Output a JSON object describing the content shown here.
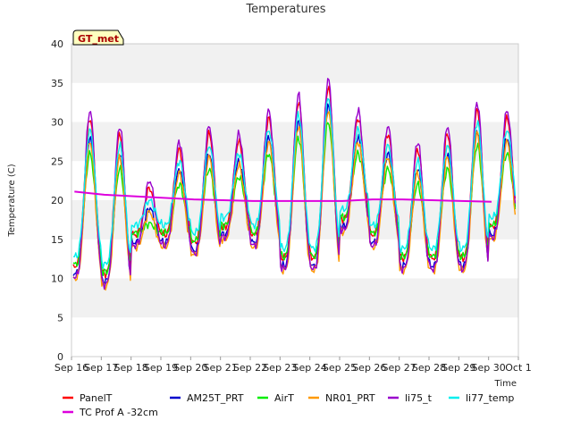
{
  "chart_data": {
    "type": "line",
    "title": "Temperatures",
    "xlabel": "Time",
    "ylabel": "Temperature (C)",
    "ylim": [
      0,
      40
    ],
    "yticks": [
      0,
      5,
      10,
      15,
      20,
      25,
      30,
      35,
      40
    ],
    "xlim": [
      "2015-09-16",
      "2015-10-01"
    ],
    "xtick_labels": [
      "Sep 16",
      "Sep 17",
      "Sep 18",
      "Sep 19",
      "Sep 20",
      "Sep 21",
      "Sep 22",
      "Sep 23",
      "Sep 24",
      "Sep 25",
      "Sep 26",
      "Sep 27",
      "Sep 28",
      "Sep 29",
      "Sep 30",
      "Oct 1"
    ],
    "grid": "horizontal bands",
    "legend_position": "bottom",
    "annotation": "GT_met",
    "days": [
      "Sep 16",
      "Sep 17",
      "Sep 18",
      "Sep 19",
      "Sep 20",
      "Sep 21",
      "Sep 22",
      "Sep 23",
      "Sep 24",
      "Sep 25",
      "Sep 26",
      "Sep 27",
      "Sep 28",
      "Sep 29",
      "Sep 30"
    ],
    "daily_min": [
      11,
      10,
      15,
      15,
      14,
      16,
      15,
      12,
      12,
      17,
      15,
      12,
      12,
      12,
      16
    ],
    "daily_max": [
      30,
      28,
      21,
      26,
      28,
      27,
      30,
      32,
      34,
      30,
      28,
      26,
      28,
      31,
      30
    ],
    "series": [
      {
        "name": "PanelT",
        "color": "#ff0000",
        "offset_max": 0.5,
        "offset_min": 0.6
      },
      {
        "name": "AM25T_PRT",
        "color": "#0000cc",
        "offset_max": -2.0,
        "offset_min": -0.4
      },
      {
        "name": "AirT",
        "color": "#00ee00",
        "offset_max": -4.0,
        "offset_min": 0.8
      },
      {
        "name": "NR01_PRT",
        "color": "#ff9900",
        "offset_max": -2.5,
        "offset_min": -1.0
      },
      {
        "name": "li75_t",
        "color": "#9900cc",
        "offset_max": 1.5,
        "offset_min": -0.8
      },
      {
        "name": "li77_temp",
        "color": "#00eeee",
        "offset_max": -1.0,
        "offset_min": 1.8
      }
    ],
    "flat_series": {
      "name": "TC Prof A -32cm",
      "color": "#dd00dd",
      "x": [
        "Sep 16",
        "Sep 17",
        "Sep 18",
        "Sep 19",
        "Sep 20",
        "Sep 21",
        "Sep 22",
        "Sep 23",
        "Sep 24",
        "Sep 25",
        "Sep 26",
        "Sep 27",
        "Sep 28",
        "Sep 29",
        "Sep 30"
      ],
      "values": [
        21.1,
        20.7,
        20.5,
        20.3,
        20.1,
        20.0,
        19.9,
        19.9,
        19.9,
        19.9,
        20.1,
        20.1,
        20.0,
        19.9,
        19.8
      ]
    },
    "legend": [
      "PanelT",
      "AM25T_PRT",
      "AirT",
      "NR01_PRT",
      "li75_t",
      "li77_temp",
      "TC Prof A -32cm"
    ]
  }
}
